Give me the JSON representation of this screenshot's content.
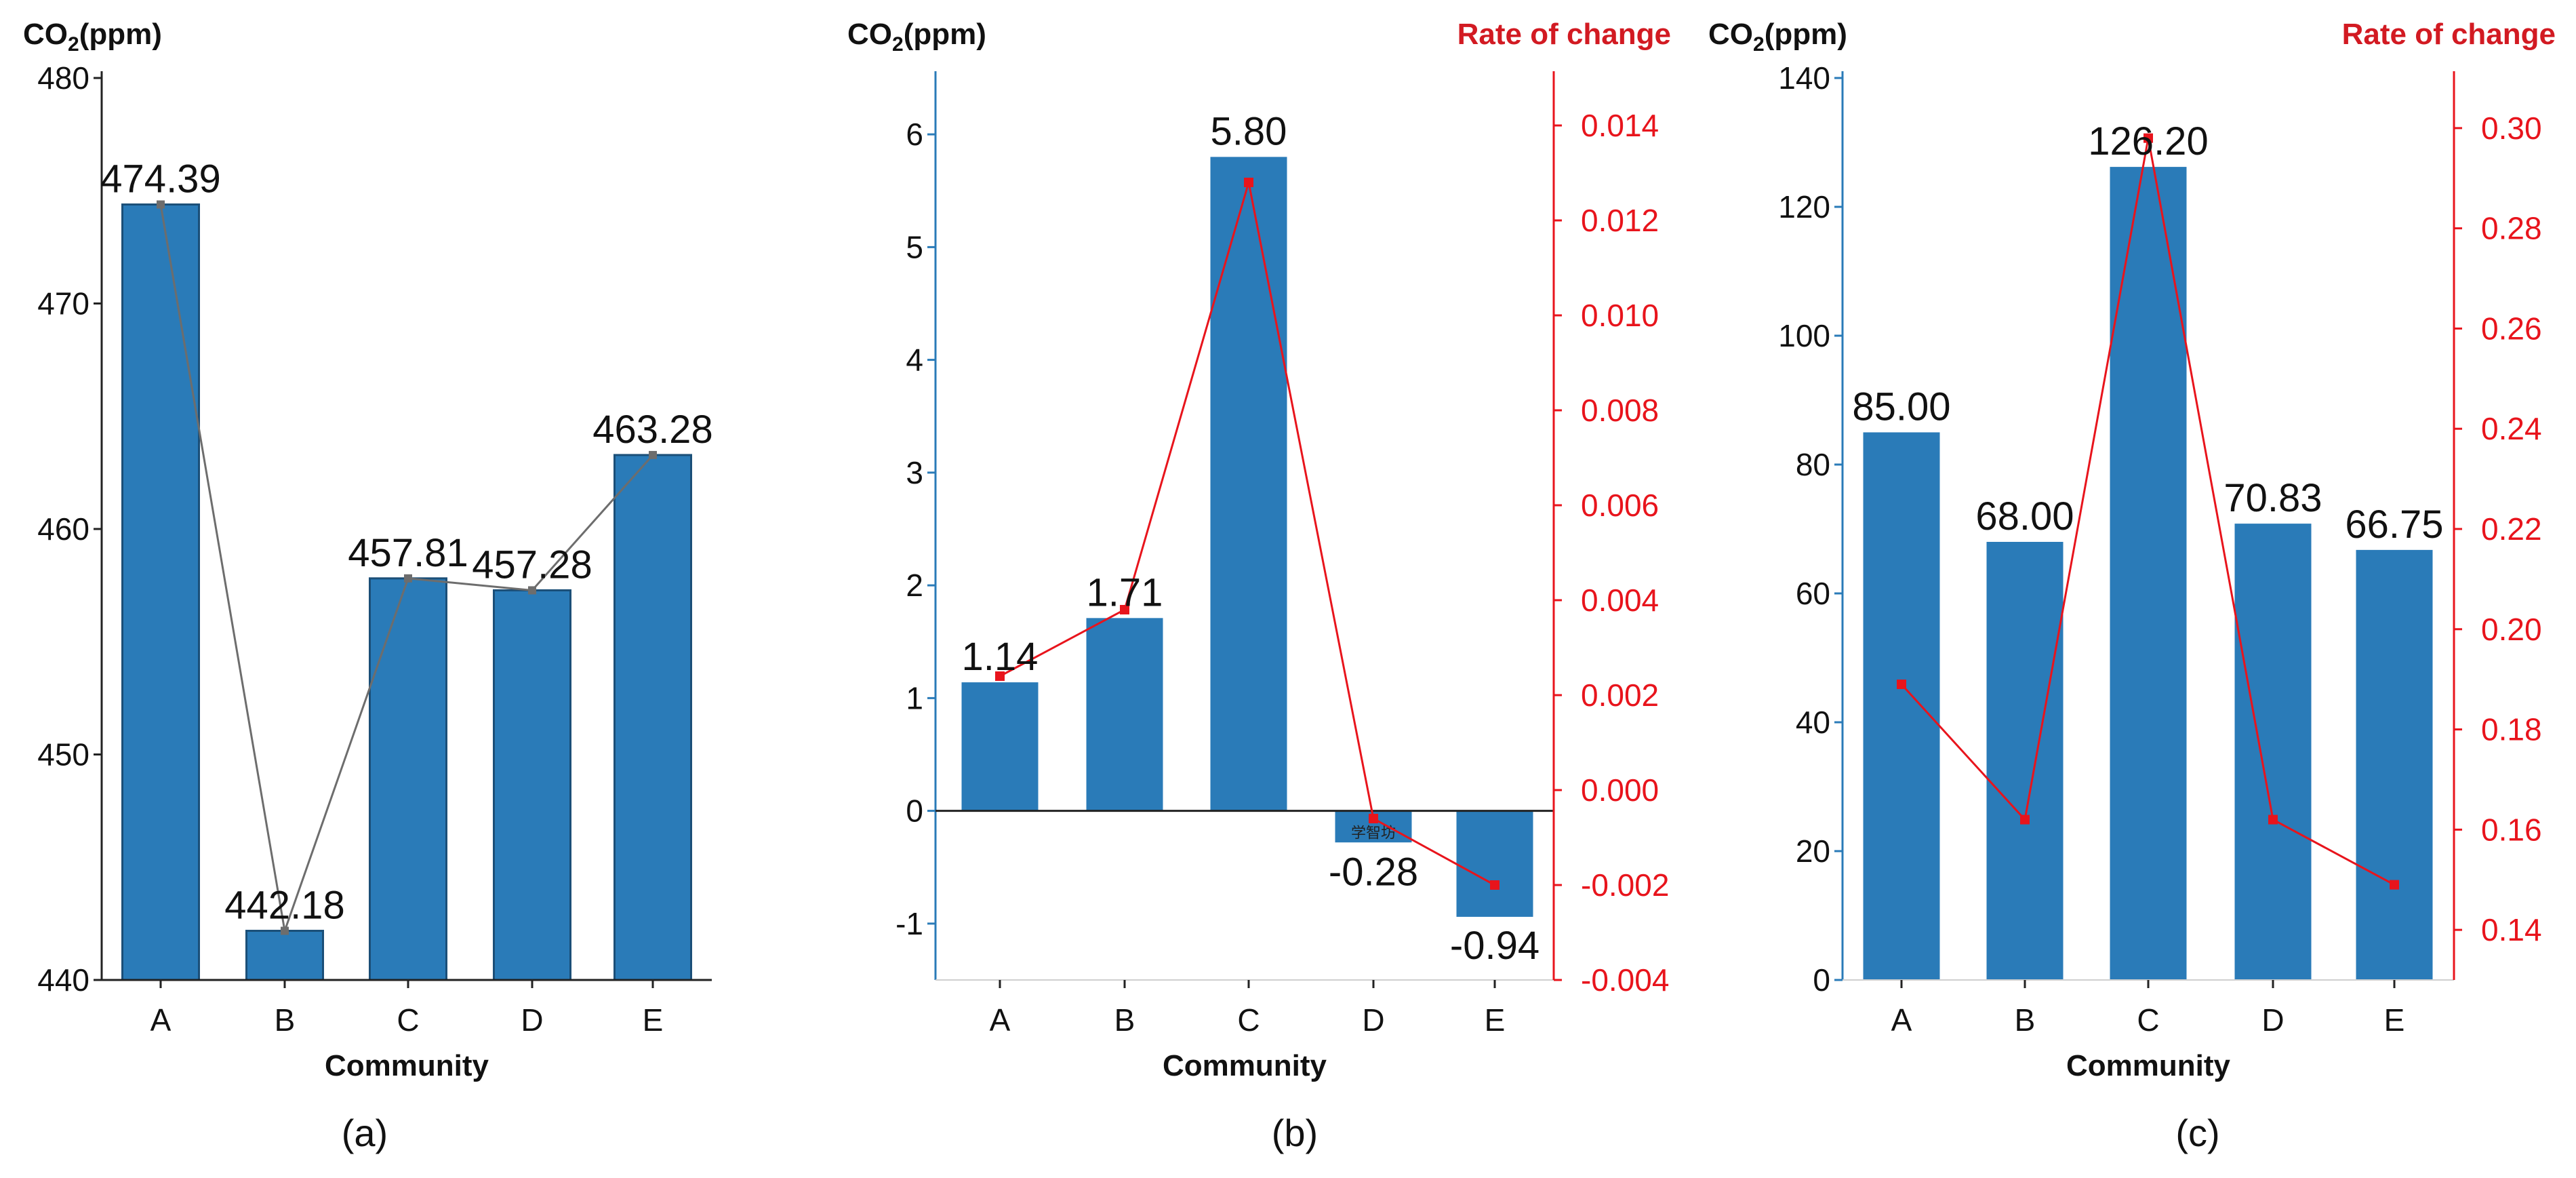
{
  "colors": {
    "bar": "#2a7bb8",
    "bar_stroke": "#1b4f78",
    "line_panel_a": "#6d6d6d",
    "rate_line": "#e8141c",
    "axis": "#222222",
    "axis_left_bc": "#2a7bb8",
    "axis_right": "#e8141c"
  },
  "chart_data": [
    {
      "type": "bar",
      "panel_label": "(a)",
      "title": "",
      "xlabel": "Community",
      "ylabel": "CO₂(ppm)",
      "categories": [
        "A",
        "B",
        "C",
        "D",
        "E"
      ],
      "ylim": [
        440,
        480
      ],
      "yticks": [
        440,
        450,
        460,
        470,
        480
      ],
      "series": [
        {
          "name": "CO₂(ppm)",
          "type": "bar",
          "values": [
            474.39,
            442.18,
            457.81,
            457.28,
            463.28
          ],
          "labels": [
            "474.39",
            "442.18",
            "457.81",
            "457.28",
            "463.28"
          ]
        },
        {
          "name": "connector",
          "type": "line",
          "values": [
            474.39,
            442.18,
            457.81,
            457.28,
            463.28
          ]
        }
      ]
    },
    {
      "type": "bar",
      "panel_label": "(b)",
      "title": "",
      "xlabel": "Community",
      "ylabel": "CO₂(ppm)",
      "y2label": "Rate of change",
      "categories": [
        "A",
        "B",
        "C",
        "D",
        "E"
      ],
      "ylim": [
        -1.5,
        6.5
      ],
      "yticks": [
        -1,
        0,
        1,
        2,
        3,
        4,
        5,
        6
      ],
      "y2lim": [
        -0.004,
        0.015
      ],
      "y2ticks": [
        "-0.004",
        "-0.002",
        "0.000",
        "0.002",
        "0.004",
        "0.006",
        "0.008",
        "0.010",
        "0.012",
        "0.014"
      ],
      "watermark": "学智坊",
      "series": [
        {
          "name": "CO₂(ppm)",
          "type": "bar",
          "values": [
            1.14,
            1.71,
            5.8,
            -0.28,
            -0.94
          ],
          "labels": [
            "1.14",
            "1.71",
            "5.80",
            "-0.28",
            "-0.94"
          ]
        },
        {
          "name": "Rate of change",
          "type": "line",
          "axis": "right",
          "values": [
            0.0024,
            0.0038,
            0.0128,
            -0.0006,
            -0.002
          ]
        }
      ]
    },
    {
      "type": "bar",
      "panel_label": "(c)",
      "title": "",
      "xlabel": "Community",
      "ylabel": "CO₂(ppm)",
      "y2label": "Rate of change",
      "categories": [
        "A",
        "B",
        "C",
        "D",
        "E"
      ],
      "ylim": [
        0,
        140
      ],
      "yticks": [
        0,
        20,
        40,
        60,
        80,
        100,
        120,
        140
      ],
      "y2lim": [
        0.13,
        0.31
      ],
      "y2ticks": [
        "0.14",
        "0.16",
        "0.18",
        "0.20",
        "0.22",
        "0.24",
        "0.26",
        "0.28",
        "0.30"
      ],
      "series": [
        {
          "name": "CO₂(ppm)",
          "type": "bar",
          "values": [
            85.0,
            68.0,
            126.2,
            70.83,
            66.75
          ],
          "labels": [
            "85.00",
            "68.00",
            "126.20",
            "70.83",
            "66.75"
          ]
        },
        {
          "name": "Rate of change",
          "type": "line",
          "axis": "right",
          "values": [
            0.189,
            0.162,
            0.298,
            0.162,
            0.149
          ]
        }
      ]
    }
  ]
}
